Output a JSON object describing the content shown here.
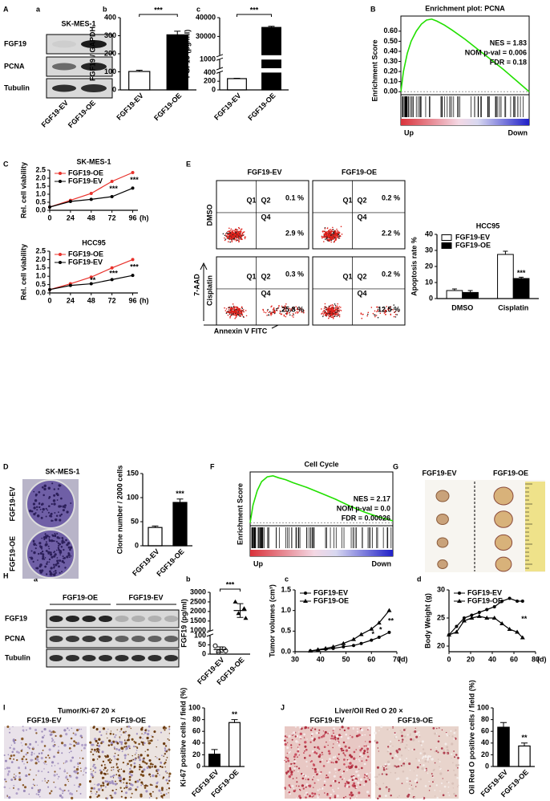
{
  "panel_labels": [
    "A",
    "B",
    "C",
    "D",
    "E",
    "F",
    "G",
    "H",
    "I",
    "J"
  ],
  "subpanel_labels": {
    "A": [
      "a",
      "b",
      "c"
    ],
    "H": [
      "a",
      "b",
      "c",
      "d"
    ]
  },
  "blot_A": {
    "title": "SK-MES-1",
    "rows": [
      "FGF19",
      "PCNA",
      "Tubulin"
    ],
    "lanes": [
      "FGF19-EV",
      "FGF19-OE"
    ]
  },
  "flow": {
    "columns": [
      "FGF19-EV",
      "FGF19-OE"
    ],
    "rows": [
      "DMSO",
      "Cisplatin"
    ],
    "y_label": "7-AAD",
    "x_label": "Annexin V FITC",
    "quadrants": [
      "Q1",
      "Q2",
      "Q4"
    ],
    "values": [
      [
        [
          "0.1 %",
          "2.9 %"
        ],
        [
          "0.2 %",
          "2.2 %"
        ]
      ],
      [
        [
          "0.3 %",
          "25.8 %"
        ],
        [
          "0.2 %",
          "12.5 %"
        ]
      ]
    ]
  },
  "colony": {
    "title": "SK-MES-1",
    "rows": [
      "FGF19-EV",
      "FGF19-OE"
    ]
  },
  "photo_G": {
    "labels": [
      "FGF19-EV",
      "FGF19-OE"
    ]
  },
  "blot_H": {
    "groups": [
      "FGF19-OE",
      "FGF19-EV"
    ],
    "rows": [
      "FGF19",
      "PCNA",
      "Tubulin"
    ]
  },
  "ihc_I": {
    "title": "Tumor/Ki-67 20 ×",
    "labels": [
      "FGF19-EV",
      "FGF19-OE"
    ]
  },
  "ihc_J": {
    "title": "Liver/Oil Red O 20 ×",
    "labels": [
      "FGF19-EV",
      "FGF19-OE"
    ]
  },
  "chart_data": [
    {
      "type": "bar",
      "ylabel": "FGF19 / GAPDH",
      "categories": [
        "FGF19-EV",
        "FGF19-OE"
      ],
      "values": [
        102,
        305
      ],
      "errors": [
        7,
        20
      ],
      "colors": [
        "#ffffff",
        "#000000"
      ],
      "ylim": [
        0,
        400
      ],
      "yticks": [
        0,
        100,
        200,
        300,
        400
      ],
      "significance_bracket": "***"
    },
    {
      "type": "bar",
      "ylabel": "FGF19 (pg/ml)",
      "categories": [
        "FGF19-EV",
        "FGF19-OE"
      ],
      "values": [
        260,
        34800
      ],
      "errors": [
        8,
        600
      ],
      "colors": [
        "#ffffff",
        "#000000"
      ],
      "ylim_segments": [
        [
          0,
          400
        ],
        [
          600,
          1000
        ],
        [
          20000,
          40000
        ]
      ],
      "yticks": [
        0,
        200,
        400,
        1000,
        30000,
        40000
      ],
      "significance_bracket": "***"
    },
    {
      "type": "line",
      "title": "Enrichment plot: PCNA",
      "ylabel": "Enrichment Score",
      "stats": [
        "NES = 1.83",
        "NOM p-val = 0.006",
        "FDR = 0.18"
      ],
      "ends": [
        "Up",
        "Down"
      ],
      "x": [
        0,
        2,
        5,
        8,
        12,
        16,
        20,
        24,
        28,
        34,
        40,
        50,
        60,
        70,
        80,
        90,
        100
      ],
      "values": [
        0,
        0.2,
        0.38,
        0.5,
        0.6,
        0.67,
        0.71,
        0.72,
        0.7,
        0.66,
        0.61,
        0.52,
        0.42,
        0.32,
        0.22,
        0.11,
        0
      ],
      "xlim": [
        0,
        100
      ],
      "ylim": [
        -0.03,
        0.75
      ],
      "color": "#22e000",
      "yticks": [
        {
          "value": 0,
          "label": "0.00"
        },
        {
          "value": 0.1,
          "label": "0.10"
        },
        {
          "value": 0.2,
          "label": "0.20"
        },
        {
          "value": 0.3,
          "label": "0.30"
        },
        {
          "value": 0.4,
          "label": "0.40"
        },
        {
          "value": 0.5,
          "label": "0.50"
        },
        {
          "value": 0.6,
          "label": "0.60"
        }
      ]
    },
    {
      "type": "line",
      "title": "SK-MES-1",
      "ylabel": "Rel. cell viability",
      "xlabel": "(h)",
      "x": [
        0,
        24,
        48,
        72,
        96
      ],
      "xlim": [
        0,
        102
      ],
      "xticks": [
        0,
        24,
        48,
        72,
        96
      ],
      "ylim": [
        0,
        2.5
      ],
      "yticks": [
        {
          "value": 0,
          "label": "0.0"
        },
        {
          "value": 0.5,
          "label": "0.5"
        },
        {
          "value": 1,
          "label": "1.0"
        },
        {
          "value": 1.5,
          "label": "1.5"
        },
        {
          "value": 2,
          "label": "2.0"
        },
        {
          "value": 2.5,
          "label": "2.5"
        }
      ],
      "series": [
        {
          "name": "FGF19-OE",
          "color": "#e8302a",
          "marker": "circle",
          "values": [
            0.2,
            0.62,
            1.05,
            1.8,
            2.35
          ]
        },
        {
          "name": "FGF19-EV",
          "color": "#000000",
          "marker": "circle",
          "values": [
            0.2,
            0.55,
            0.68,
            0.85,
            1.38
          ]
        }
      ],
      "annotations": [
        {
          "x": 72,
          "text": "***"
        },
        {
          "x": 96,
          "text": "***"
        }
      ],
      "legend": "upper left"
    },
    {
      "type": "line",
      "title": "HCC95",
      "ylabel": "Rel. cell viability",
      "xlabel": "(h)",
      "x": [
        0,
        24,
        48,
        72,
        96
      ],
      "xlim": [
        0,
        102
      ],
      "xticks": [
        0,
        24,
        48,
        72,
        96
      ],
      "ylim": [
        0,
        2.5
      ],
      "yticks": [
        {
          "value": 0,
          "label": "0.0"
        },
        {
          "value": 0.5,
          "label": "0.5"
        },
        {
          "value": 1,
          "label": "1.0"
        },
        {
          "value": 1.5,
          "label": "1.5"
        },
        {
          "value": 2,
          "label": "2.0"
        },
        {
          "value": 2.5,
          "label": "2.5"
        }
      ],
      "series": [
        {
          "name": "FGF19-OE",
          "color": "#e8302a",
          "marker": "circle",
          "values": [
            0.2,
            0.55,
            0.95,
            1.5,
            2.0
          ]
        },
        {
          "name": "FGF19-EV",
          "color": "#000000",
          "marker": "circle",
          "values": [
            0.2,
            0.45,
            0.55,
            0.8,
            1.05
          ]
        }
      ],
      "annotations": [
        {
          "x": 48,
          "text": "**"
        },
        {
          "x": 72,
          "text": "***"
        },
        {
          "x": 96,
          "text": "***"
        }
      ],
      "legend": "upper left"
    },
    {
      "type": "bar",
      "title": "HCC95",
      "ylabel": "Apoptosis rate %",
      "categories": [
        "DMSO",
        "Cisplatin"
      ],
      "ylim": [
        0,
        40
      ],
      "yticks": [
        0,
        10,
        20,
        30,
        40
      ],
      "legend": "upper left",
      "series": [
        {
          "name": "FGF19-EV",
          "color": "#ffffff",
          "values": [
            5,
            27.5
          ],
          "errors": [
            1,
            2
          ]
        },
        {
          "name": "FGF19-OE",
          "color": "#000000",
          "values": [
            3.8,
            12.5
          ],
          "errors": [
            1.2,
            0.8
          ],
          "significance": [
            null,
            "***"
          ]
        }
      ]
    },
    {
      "type": "bar",
      "ylabel": "Clone number / 2000 cells",
      "categories": [
        "FGF19-EV",
        "FGF19-OE"
      ],
      "values": [
        38,
        90
      ],
      "errors": [
        3,
        7
      ],
      "colors": [
        "#ffffff",
        "#000000"
      ],
      "ylim": [
        0,
        150
      ],
      "yticks": [
        0,
        50,
        100,
        150
      ],
      "significance": [
        null,
        "***"
      ]
    },
    {
      "type": "line",
      "title": "Cell Cycle",
      "ylabel": "Enrichment Score",
      "stats": [
        "NES = 2.17",
        "NOM p-val = 0.0",
        "FDR = 0.00026"
      ],
      "ends": [
        "Up",
        "Down"
      ],
      "x": [
        0,
        2,
        5,
        8,
        12,
        16,
        20,
        25,
        30,
        40,
        50,
        60,
        70,
        80,
        90,
        100
      ],
      "values": [
        0,
        0.18,
        0.33,
        0.42,
        0.47,
        0.48,
        0.46,
        0.44,
        0.41,
        0.36,
        0.3,
        0.24,
        0.17,
        0.11,
        0.06,
        0.02
      ],
      "xlim": [
        0,
        100
      ],
      "ylim": [
        -0.03,
        0.52
      ],
      "color": "#22e000"
    },
    {
      "type": "scatter",
      "ylabel": "FGF19 (pg/ml)",
      "categories": [
        "FGF19-EV",
        "FGF19-OE"
      ],
      "values": [
        [
          45,
          28,
          12,
          18
        ],
        [
          2500,
          2150,
          1900,
          1650
        ]
      ],
      "means": [
        25,
        2050
      ],
      "errors": [
        14,
        360
      ],
      "ylim_segments": [
        [
          0,
          100
        ],
        [
          1000,
          3000
        ]
      ],
      "yticks": [
        0,
        50,
        100,
        1000,
        1500,
        2000,
        2500,
        3000
      ],
      "significance_bracket": "***"
    },
    {
      "type": "line",
      "ylabel": "Tumor volumes (cm³)",
      "xlabel": "(d)",
      "x": [
        36,
        39,
        42,
        45,
        49,
        53,
        56,
        60,
        63,
        67
      ],
      "xlim": [
        30,
        70
      ],
      "xticks": [
        30,
        40,
        50,
        60,
        70
      ],
      "ylim": [
        0,
        1.5
      ],
      "yticks": [
        {
          "value": 0,
          "label": "0.0"
        },
        {
          "value": 0.5,
          "label": "0.5"
        },
        {
          "value": 1,
          "label": "1.0"
        },
        {
          "value": 1.5,
          "label": "1.5"
        }
      ],
      "series": [
        {
          "name": "FGF19-EV",
          "color": "#000000",
          "marker": "circle",
          "values": [
            0.02,
            0.04,
            0.06,
            0.08,
            0.12,
            0.15,
            0.2,
            0.28,
            0.35,
            0.47
          ]
        },
        {
          "name": "FGF19-OE",
          "color": "#000000",
          "marker": "triangle",
          "values": [
            0.02,
            0.05,
            0.08,
            0.12,
            0.2,
            0.3,
            0.42,
            0.55,
            0.7,
            1.0
          ]
        }
      ],
      "annotations": [
        {
          "x": 60,
          "text": "*"
        },
        {
          "x": 63,
          "text": "*"
        },
        {
          "x": 67,
          "text": "**"
        }
      ],
      "legend": "upper left"
    },
    {
      "type": "line",
      "ylabel": "Body Weight (g)",
      "xlabel": "(d)",
      "x": [
        0,
        7,
        14,
        21,
        28,
        35,
        42,
        49,
        56,
        63,
        68
      ],
      "xlim": [
        0,
        80
      ],
      "xticks": [
        0,
        20,
        40,
        60,
        80
      ],
      "ylim": [
        19,
        30
      ],
      "yticks": [
        20,
        25,
        30
      ],
      "series": [
        {
          "name": "FGF19-EV",
          "color": "#000000",
          "marker": "circle",
          "values": [
            22,
            23.5,
            25,
            25.5,
            26,
            26.5,
            27,
            28,
            28.5,
            28,
            28
          ]
        },
        {
          "name": "FGF19-OE",
          "color": "#000000",
          "marker": "triangle",
          "values": [
            22,
            22.5,
            24.5,
            25,
            25.3,
            25,
            25,
            24,
            23,
            22.5,
            21.5
          ]
        }
      ],
      "annotations": [
        {
          "x": 68,
          "text": "**"
        }
      ],
      "legend": "upper left"
    },
    {
      "type": "bar",
      "ylabel": "Ki-67 positive cells / field (%)",
      "categories": [
        "FGF19-EV",
        "FGF19-OE"
      ],
      "values": [
        21,
        75
      ],
      "errors": [
        8,
        5
      ],
      "colors": [
        "#000000",
        "#ffffff"
      ],
      "ylim": [
        0,
        100
      ],
      "yticks": [
        0,
        20,
        40,
        60,
        80,
        100
      ],
      "significance": [
        null,
        "**"
      ]
    },
    {
      "type": "bar",
      "ylabel": "Oil Red O positive cells / field (%)",
      "categories": [
        "FGF19-EV",
        "FGF19-OE"
      ],
      "values": [
        67,
        35
      ],
      "errors": [
        8,
        5
      ],
      "colors": [
        "#000000",
        "#ffffff"
      ],
      "ylim": [
        0,
        100
      ],
      "yticks": [
        0,
        20,
        40,
        60,
        80,
        100
      ],
      "significance": [
        null,
        "**"
      ]
    }
  ]
}
